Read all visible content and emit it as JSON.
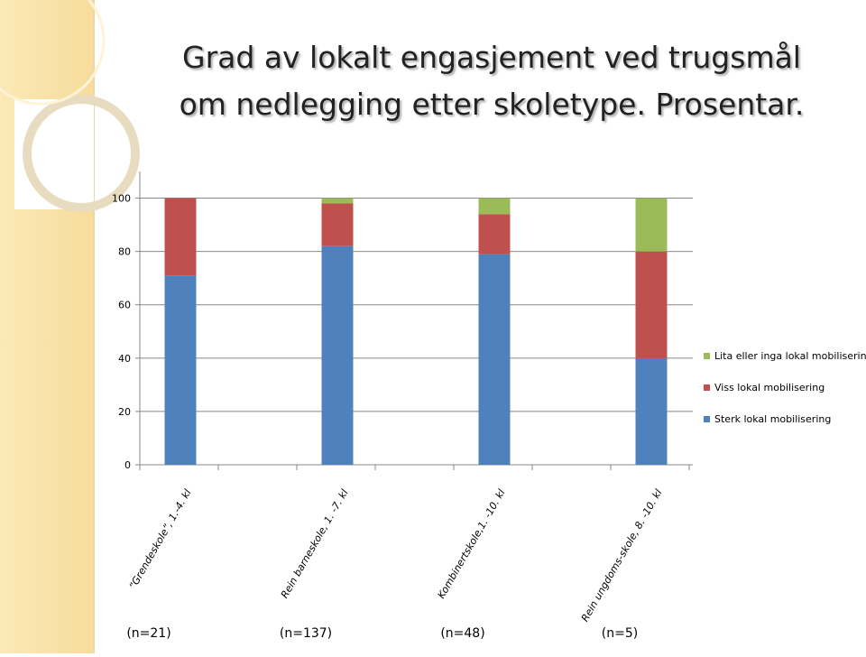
{
  "chart_data": {
    "type": "stacked_bar",
    "title": "Grad av lokalt engasjement ved trugsmål om nedlegging etter skoletype. Prosentar.",
    "categories": [
      "“Grendeskole”, 1.-4. kl",
      "Rein barneskole, 1. -7. kl",
      "Kombinertskole,1. -10. kl",
      "Rein ungdoms-skole, 8. -10. kl"
    ],
    "n_labels": [
      "(n=21)",
      "(n=137)",
      "(n=48)",
      "(n=5)"
    ],
    "series": [
      {
        "name": "Sterk lokal mobilisering",
        "color": "#4f81bd",
        "values": [
          71,
          82,
          79,
          40
        ]
      },
      {
        "name": "Viss lokal mobilisering",
        "color": "#c0504d",
        "values": [
          29,
          16,
          15,
          40
        ]
      },
      {
        "name": "Lita eller inga lokal mobilisering",
        "color": "#9bbb59",
        "values": [
          0,
          2,
          6,
          20
        ]
      }
    ],
    "ylim": [
      0,
      110
    ],
    "yticks": [
      0,
      20,
      40,
      60,
      80,
      100
    ],
    "grid": true,
    "legend": "right"
  }
}
